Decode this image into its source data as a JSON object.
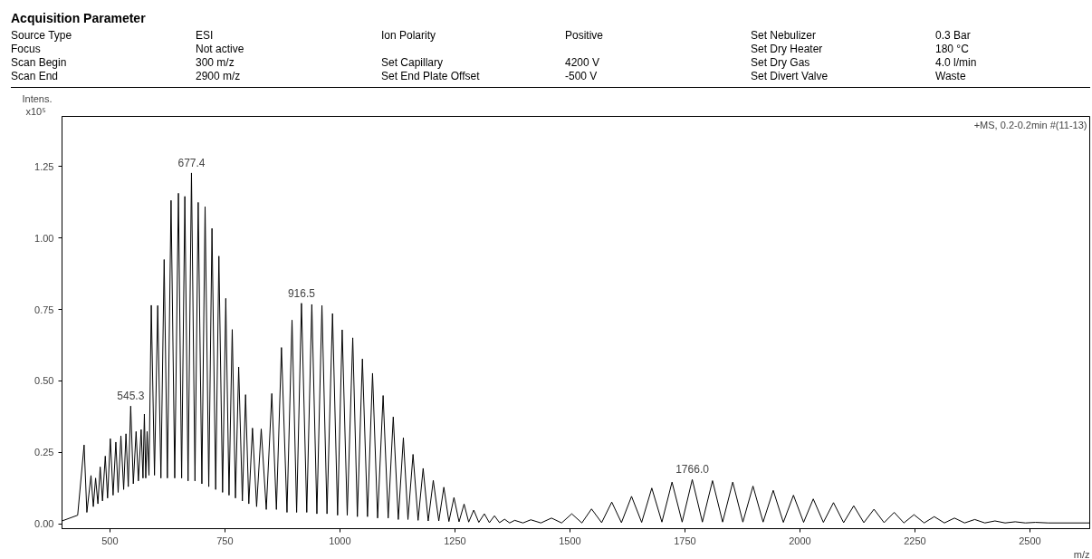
{
  "chart_data": {
    "type": "line",
    "title": "Acquisition Parameter",
    "xlabel": "m/z",
    "ylabel": "Intens.",
    "color": "#000000",
    "annotations": [
      "Source Type",
      "ESI",
      "Ion Polarity",
      "Positive",
      "Set Nebulizer",
      "0.3 Bar",
      "Focus",
      "Not active",
      "Set Dry Heater",
      "180 °C",
      "Scan Begin",
      "300 m/z",
      "Set Capillary",
      "4200 V",
      "Set Dry Gas",
      "4.0 l/min",
      "Scan End",
      "2900 m/z",
      "Set End Plate Offset",
      "-500 V",
      "Set Divert Valve",
      "Waste",
      "x10⁵",
      "+MS, 0.2-0.2min #(11-13)",
      {
        "text": "545.3",
        "x": 545.3,
        "y": 0.412
      },
      {
        "text": "677.4",
        "x": 677.4,
        "y": 1.228
      },
      {
        "text": "916.5",
        "x": 916.5,
        "y": 0.772
      },
      {
        "text": "1766.0",
        "x": 1766.0,
        "y": 0.155
      }
    ],
    "xlim": [
      396,
      2630
    ],
    "ylim": [
      -0.017,
      1.426
    ],
    "xticks": [
      500,
      750,
      1000,
      1250,
      1500,
      1750,
      2000,
      2250,
      2500
    ],
    "yticks": [
      {
        "value": 0,
        "label": "0.00"
      },
      {
        "value": 0.25,
        "label": "0.25"
      },
      {
        "value": 0.5,
        "label": "0.50"
      },
      {
        "value": 0.75,
        "label": "0.75"
      },
      {
        "value": 1.0,
        "label": "1.00"
      },
      {
        "value": 1.25,
        "label": "1.25"
      }
    ],
    "x": [
      396,
      430,
      444,
      450,
      459,
      464,
      469,
      474,
      479,
      484,
      490,
      495,
      501,
      507,
      513,
      518,
      524,
      530,
      535,
      540,
      545.3,
      551,
      557,
      562,
      568,
      572,
      575,
      578,
      581,
      585,
      590,
      597,
      604,
      611,
      618,
      625,
      633,
      641,
      649,
      656,
      663,
      670,
      677.4,
      685,
      692,
      700,
      707,
      715,
      722,
      730,
      737,
      745,
      752,
      759,
      766,
      773,
      780,
      788,
      795,
      802,
      810,
      819,
      829,
      840,
      852,
      862,
      873,
      885,
      896,
      906,
      916.5,
      928,
      939,
      950,
      961,
      972,
      984,
      995,
      1005,
      1016,
      1028,
      1038,
      1049,
      1060,
      1071,
      1082,
      1094,
      1105,
      1116,
      1127,
      1138,
      1148,
      1159,
      1170,
      1181,
      1192,
      1203,
      1215,
      1226,
      1237,
      1248,
      1259,
      1270,
      1280,
      1291,
      1302,
      1314,
      1325,
      1336,
      1347,
      1358,
      1369,
      1380,
      1398,
      1415,
      1437,
      1460,
      1482,
      1504,
      1526,
      1547,
      1569,
      1591,
      1612,
      1634,
      1656,
      1678,
      1700,
      1722,
      1744,
      1766.0,
      1788,
      1810,
      1832,
      1854,
      1876,
      1898,
      1920,
      1942,
      1964,
      1986,
      2008,
      2029,
      2051,
      2073,
      2095,
      2117,
      2139,
      2161,
      2183,
      2205,
      2226,
      2248,
      2270,
      2292,
      2314,
      2336,
      2358,
      2380,
      2402,
      2424,
      2446,
      2468,
      2490,
      2512,
      2540,
      2630
    ],
    "values": [
      0.01,
      0.03,
      0.276,
      0.04,
      0.169,
      0.06,
      0.16,
      0.07,
      0.199,
      0.08,
      0.237,
      0.09,
      0.298,
      0.1,
      0.286,
      0.11,
      0.308,
      0.12,
      0.315,
      0.13,
      0.412,
      0.14,
      0.323,
      0.15,
      0.33,
      0.16,
      0.384,
      0.16,
      0.323,
      0.17,
      0.765,
      0.17,
      0.764,
      0.16,
      0.925,
      0.16,
      1.132,
      0.16,
      1.157,
      0.16,
      1.146,
      0.15,
      1.228,
      0.15,
      1.125,
      0.14,
      1.11,
      0.13,
      1.034,
      0.12,
      0.937,
      0.11,
      0.789,
      0.1,
      0.68,
      0.09,
      0.549,
      0.08,
      0.452,
      0.07,
      0.335,
      0.06,
      0.332,
      0.05,
      0.456,
      0.05,
      0.617,
      0.04,
      0.713,
      0.04,
      0.772,
      0.04,
      0.768,
      0.035,
      0.764,
      0.035,
      0.736,
      0.03,
      0.679,
      0.03,
      0.651,
      0.025,
      0.577,
      0.025,
      0.527,
      0.02,
      0.449,
      0.02,
      0.374,
      0.015,
      0.301,
      0.015,
      0.243,
      0.012,
      0.194,
      0.01,
      0.152,
      0.01,
      0.128,
      0.008,
      0.092,
      0.007,
      0.069,
      0.006,
      0.048,
      0.005,
      0.035,
      0.004,
      0.028,
      0.004,
      0.016,
      0.003,
      0.012,
      0.003,
      0.014,
      0.003,
      0.02,
      0.003,
      0.035,
      0.003,
      0.052,
      0.004,
      0.076,
      0.004,
      0.096,
      0.005,
      0.125,
      0.006,
      0.146,
      0.006,
      0.155,
      0.006,
      0.151,
      0.006,
      0.146,
      0.006,
      0.132,
      0.006,
      0.117,
      0.005,
      0.1,
      0.005,
      0.087,
      0.005,
      0.074,
      0.004,
      0.063,
      0.004,
      0.051,
      0.004,
      0.04,
      0.003,
      0.032,
      0.003,
      0.025,
      0.003,
      0.02,
      0.003,
      0.015,
      0.003,
      0.01,
      0.003,
      0.007,
      0.003,
      0.005,
      0.003,
      0.003
    ]
  }
}
